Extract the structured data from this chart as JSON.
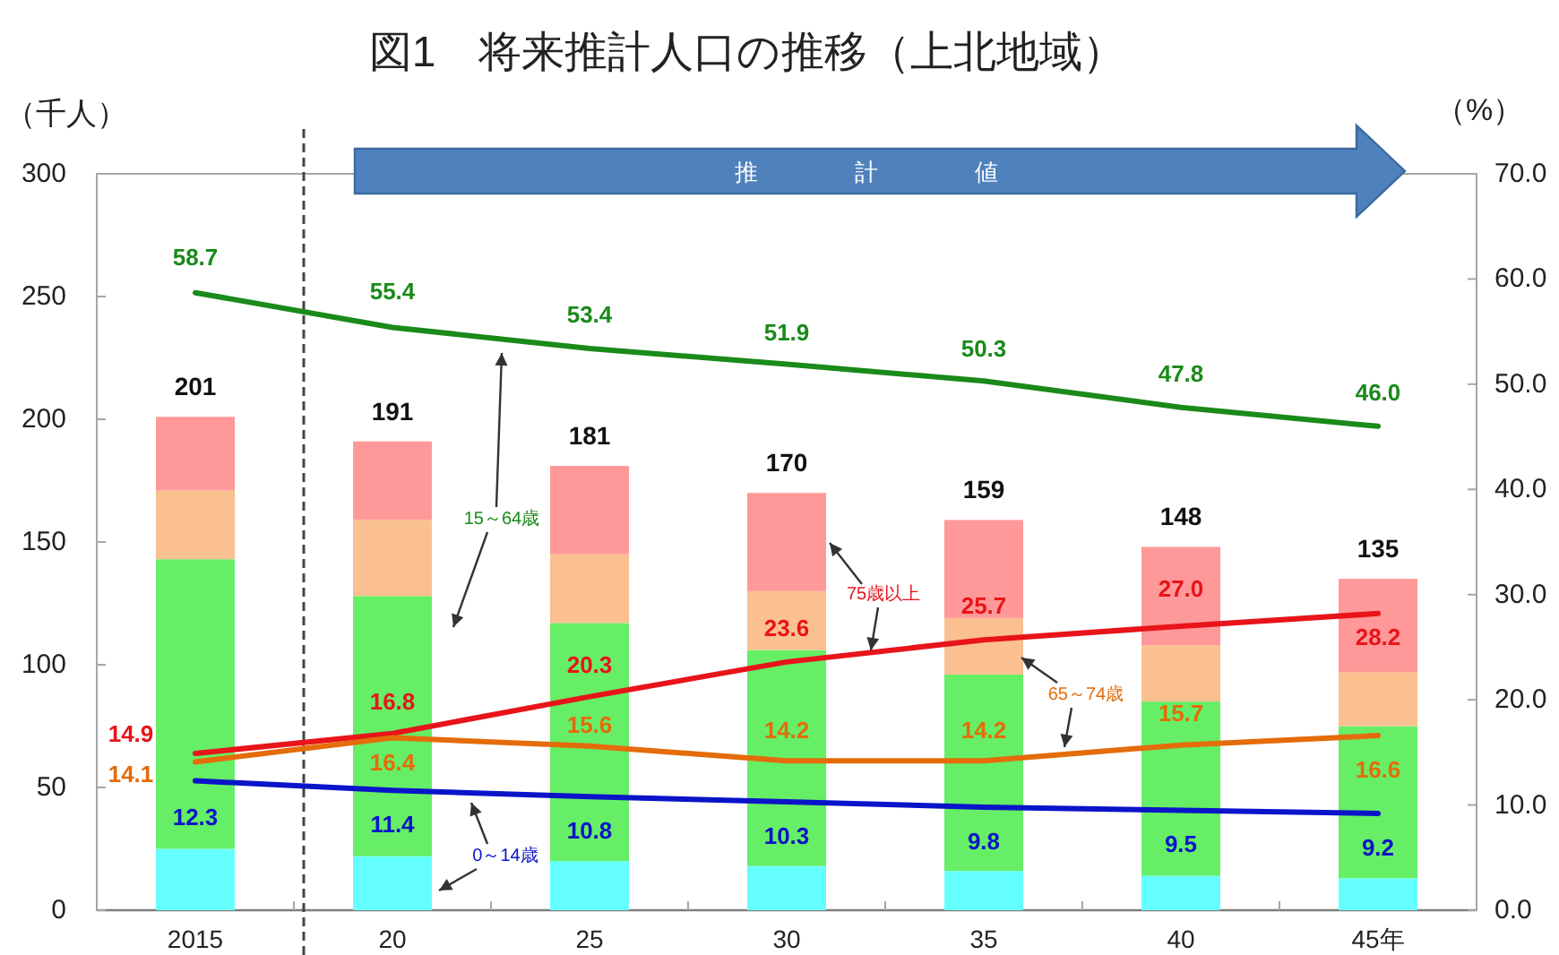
{
  "chart_data": {
    "type": "bar",
    "title": "図1　将来推計人口の推移（上北地域）",
    "ylabel": "（千人）",
    "y2label": "（%）",
    "stacked": true,
    "categories": [
      "2015",
      "20",
      "25",
      "30",
      "35",
      "40",
      "45年"
    ],
    "ylim": [
      0,
      300
    ],
    "yticks": [
      0,
      50,
      100,
      150,
      200,
      250,
      300
    ],
    "y2lim": [
      0,
      70
    ],
    "y2ticks": [
      {
        "value": 0,
        "label": "0.0"
      },
      {
        "value": 10,
        "label": "10.0"
      },
      {
        "value": 20,
        "label": "20.0"
      },
      {
        "value": 30,
        "label": "30.0"
      },
      {
        "value": 40,
        "label": "40.0"
      },
      {
        "value": 50,
        "label": "50.0"
      },
      {
        "value": 60,
        "label": "60.0"
      },
      {
        "value": 70,
        "label": "70.0"
      }
    ],
    "series": [
      {
        "color": "#66ffff",
        "values": [
          25,
          22,
          20,
          18,
          16,
          14,
          13
        ]
      },
      {
        "color": "#66ee66",
        "values": [
          118,
          106,
          97,
          88,
          80,
          71,
          62
        ]
      },
      {
        "color": "#fac090",
        "values": [
          28,
          31,
          28,
          24,
          23,
          23,
          22
        ]
      },
      {
        "color": "#ff9999",
        "values": [
          30,
          32,
          36,
          40,
          40,
          40,
          38
        ]
      },
      {
        "type": "line",
        "axis": "y2",
        "color": "#1a8a1a",
        "values": [
          58.7,
          55.4,
          53.4,
          51.9,
          50.3,
          47.8,
          46.0
        ],
        "value_labels": [
          "58.7",
          "55.4",
          "53.4",
          "51.9",
          "50.3",
          "47.8",
          "46.0"
        ]
      },
      {
        "type": "line",
        "axis": "y2",
        "color": "#e8141a",
        "values": [
          14.9,
          16.8,
          20.3,
          23.6,
          25.7,
          27.0,
          28.2
        ],
        "value_labels": [
          "14.9",
          "16.8",
          "20.3",
          "23.6",
          "25.7",
          "27.0",
          "28.2"
        ]
      },
      {
        "type": "line",
        "axis": "y2",
        "color": "#e46c0a",
        "values": [
          14.1,
          16.4,
          15.6,
          14.2,
          14.2,
          15.7,
          16.6
        ],
        "value_labels": [
          "14.1",
          "16.4",
          "15.6",
          "14.2",
          "14.2",
          "15.7",
          "16.6"
        ]
      },
      {
        "type": "line",
        "axis": "y2",
        "color": "#0a14c8",
        "values": [
          12.3,
          11.4,
          10.8,
          10.3,
          9.8,
          9.5,
          9.2
        ],
        "value_labels": [
          "12.3",
          "11.4",
          "10.8",
          "10.3",
          "9.8",
          "9.5",
          "9.2"
        ]
      }
    ],
    "totals": [
      "201",
      "191",
      "181",
      "170",
      "159",
      "148",
      "135"
    ],
    "annotations": [
      "推計値",
      "15～64歳",
      "75歳以上",
      "65～74歳",
      "0～14歳"
    ]
  }
}
